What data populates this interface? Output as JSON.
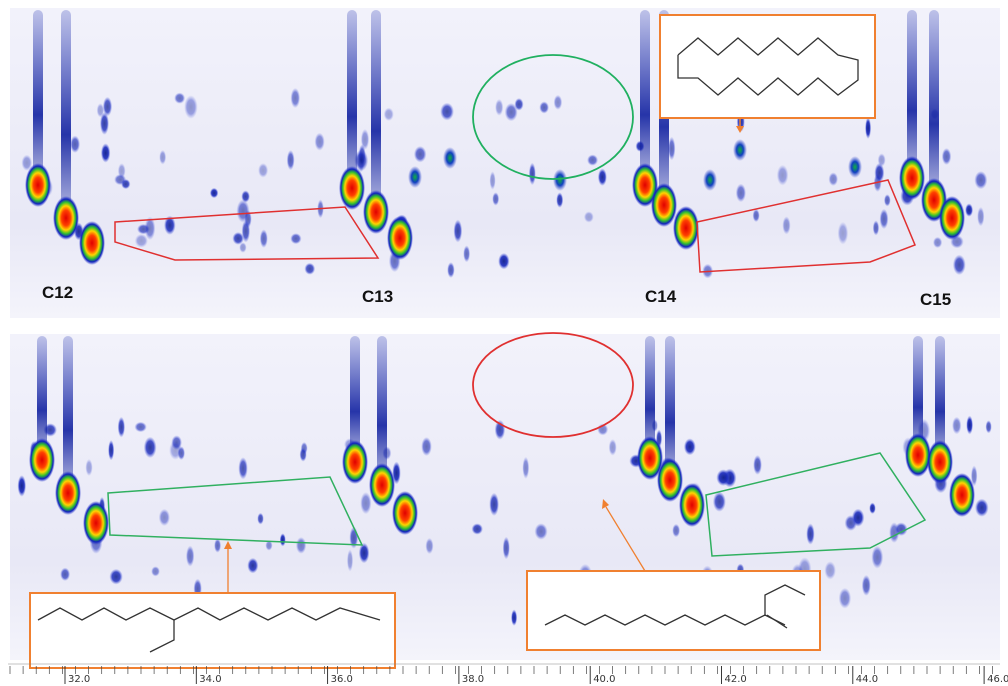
{
  "top_panel": {
    "labels": [
      "C12",
      "C13",
      "C14",
      "C15"
    ]
  },
  "axis": {
    "ticks": [
      "32.0",
      "34.0",
      "36.0",
      "38.0",
      "40.0",
      "42.0",
      "44.0",
      "46.0"
    ]
  }
}
